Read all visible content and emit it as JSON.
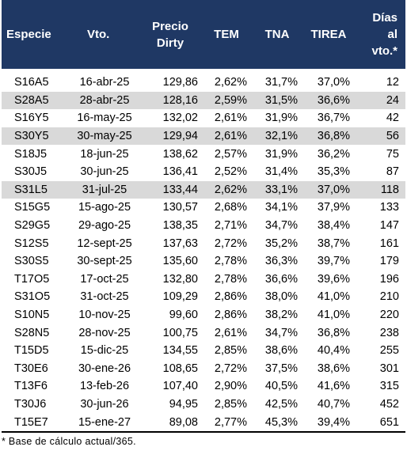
{
  "headers": [
    "Especie",
    "Vto.",
    "Precio Dirty",
    "TEM",
    "TNA",
    "TIREA",
    "Días al vto.*"
  ],
  "rows": [
    {
      "especie": "S16A5",
      "vto": "16-abr-25",
      "precio": "129,86",
      "tem": "2,62%",
      "tna": "31,7%",
      "tirea": "37,0%",
      "dias": "12",
      "shaded": false
    },
    {
      "especie": "S28A5",
      "vto": "28-abr-25",
      "precio": "128,16",
      "tem": "2,59%",
      "tna": "31,5%",
      "tirea": "36,6%",
      "dias": "24",
      "shaded": true
    },
    {
      "especie": "S16Y5",
      "vto": "16-may-25",
      "precio": "132,02",
      "tem": "2,61%",
      "tna": "31,9%",
      "tirea": "36,7%",
      "dias": "42",
      "shaded": false
    },
    {
      "especie": "S30Y5",
      "vto": "30-may-25",
      "precio": "129,94",
      "tem": "2,61%",
      "tna": "32,1%",
      "tirea": "36,8%",
      "dias": "56",
      "shaded": true
    },
    {
      "especie": "S18J5",
      "vto": "18-jun-25",
      "precio": "138,62",
      "tem": "2,57%",
      "tna": "31,9%",
      "tirea": "36,2%",
      "dias": "75",
      "shaded": false
    },
    {
      "especie": "S30J5",
      "vto": "30-jun-25",
      "precio": "136,41",
      "tem": "2,52%",
      "tna": "31,4%",
      "tirea": "35,3%",
      "dias": "87",
      "shaded": false
    },
    {
      "especie": "S31L5",
      "vto": "31-jul-25",
      "precio": "133,44",
      "tem": "2,62%",
      "tna": "33,1%",
      "tirea": "37,0%",
      "dias": "118",
      "shaded": true
    },
    {
      "especie": "S15G5",
      "vto": "15-ago-25",
      "precio": "130,57",
      "tem": "2,68%",
      "tna": "34,1%",
      "tirea": "37,9%",
      "dias": "133",
      "shaded": false
    },
    {
      "especie": "S29G5",
      "vto": "29-ago-25",
      "precio": "138,35",
      "tem": "2,71%",
      "tna": "34,7%",
      "tirea": "38,4%",
      "dias": "147",
      "shaded": false
    },
    {
      "especie": "S12S5",
      "vto": "12-sept-25",
      "precio": "137,63",
      "tem": "2,72%",
      "tna": "35,2%",
      "tirea": "38,7%",
      "dias": "161",
      "shaded": false
    },
    {
      "especie": "S30S5",
      "vto": "30-sept-25",
      "precio": "135,60",
      "tem": "2,78%",
      "tna": "36,3%",
      "tirea": "39,7%",
      "dias": "179",
      "shaded": false
    },
    {
      "especie": "T17O5",
      "vto": "17-oct-25",
      "precio": "132,80",
      "tem": "2,78%",
      "tna": "36,6%",
      "tirea": "39,6%",
      "dias": "196",
      "shaded": false
    },
    {
      "especie": "S31O5",
      "vto": "31-oct-25",
      "precio": "109,29",
      "tem": "2,86%",
      "tna": "38,0%",
      "tirea": "41,0%",
      "dias": "210",
      "shaded": false
    },
    {
      "especie": "S10N5",
      "vto": "10-nov-25",
      "precio": "99,60",
      "tem": "2,86%",
      "tna": "38,2%",
      "tirea": "41,0%",
      "dias": "220",
      "shaded": false
    },
    {
      "especie": "S28N5",
      "vto": "28-nov-25",
      "precio": "100,75",
      "tem": "2,61%",
      "tna": "34,7%",
      "tirea": "36,8%",
      "dias": "238",
      "shaded": false
    },
    {
      "especie": "T15D5",
      "vto": "15-dic-25",
      "precio": "134,55",
      "tem": "2,85%",
      "tna": "38,6%",
      "tirea": "40,4%",
      "dias": "255",
      "shaded": false
    },
    {
      "especie": "T30E6",
      "vto": "30-ene-26",
      "precio": "108,65",
      "tem": "2,72%",
      "tna": "37,5%",
      "tirea": "38,6%",
      "dias": "301",
      "shaded": false
    },
    {
      "especie": "T13F6",
      "vto": "13-feb-26",
      "precio": "107,40",
      "tem": "2,90%",
      "tna": "40,5%",
      "tirea": "41,6%",
      "dias": "315",
      "shaded": false
    },
    {
      "especie": "T30J6",
      "vto": "30-jun-26",
      "precio": "94,95",
      "tem": "2,85%",
      "tna": "42,5%",
      "tirea": "40,7%",
      "dias": "452",
      "shaded": false
    },
    {
      "especie": "T15E7",
      "vto": "15-ene-27",
      "precio": "89,08",
      "tem": "2,77%",
      "tna": "45,3%",
      "tirea": "39,4%",
      "dias": "651",
      "shaded": false
    }
  ],
  "footnote": "* Base de cálculo actual/365.",
  "colors": {
    "header_bg": "#1f3864",
    "shade": "#d9d9d9"
  }
}
